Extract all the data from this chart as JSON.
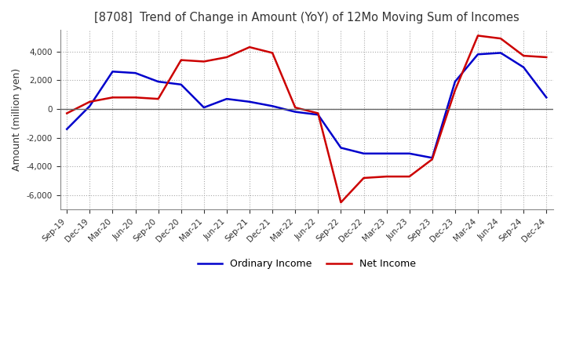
{
  "title": "[8708]  Trend of Change in Amount (YoY) of 12Mo Moving Sum of Incomes",
  "ylabel": "Amount (million yen)",
  "x_labels": [
    "Sep-19",
    "Dec-19",
    "Mar-20",
    "Jun-20",
    "Sep-20",
    "Dec-20",
    "Mar-21",
    "Jun-21",
    "Sep-21",
    "Dec-21",
    "Mar-22",
    "Jun-22",
    "Sep-22",
    "Dec-22",
    "Mar-23",
    "Jun-23",
    "Sep-23",
    "Dec-23",
    "Mar-24",
    "Jun-24",
    "Sep-24",
    "Dec-24"
  ],
  "ordinary_income": [
    -1400,
    200,
    2600,
    2500,
    1900,
    1700,
    100,
    700,
    500,
    200,
    -200,
    -400,
    -2700,
    -3100,
    -3100,
    -3100,
    -3400,
    1900,
    3800,
    3900,
    2900,
    800
  ],
  "net_income": [
    -300,
    500,
    800,
    800,
    700,
    3400,
    3300,
    3600,
    4300,
    3900,
    100,
    -300,
    -6500,
    -4800,
    -4700,
    -4700,
    -3500,
    1300,
    5100,
    4900,
    3700,
    3600
  ],
  "ordinary_color": "#0000cc",
  "net_color": "#cc0000",
  "ylim": [
    -7000,
    5500
  ],
  "yticks": [
    -6000,
    -4000,
    -2000,
    0,
    2000,
    4000
  ],
  "grid_color": "#aaaaaa",
  "background_color": "#ffffff",
  "legend_labels": [
    "Ordinary Income",
    "Net Income"
  ],
  "title_color": "#333333"
}
